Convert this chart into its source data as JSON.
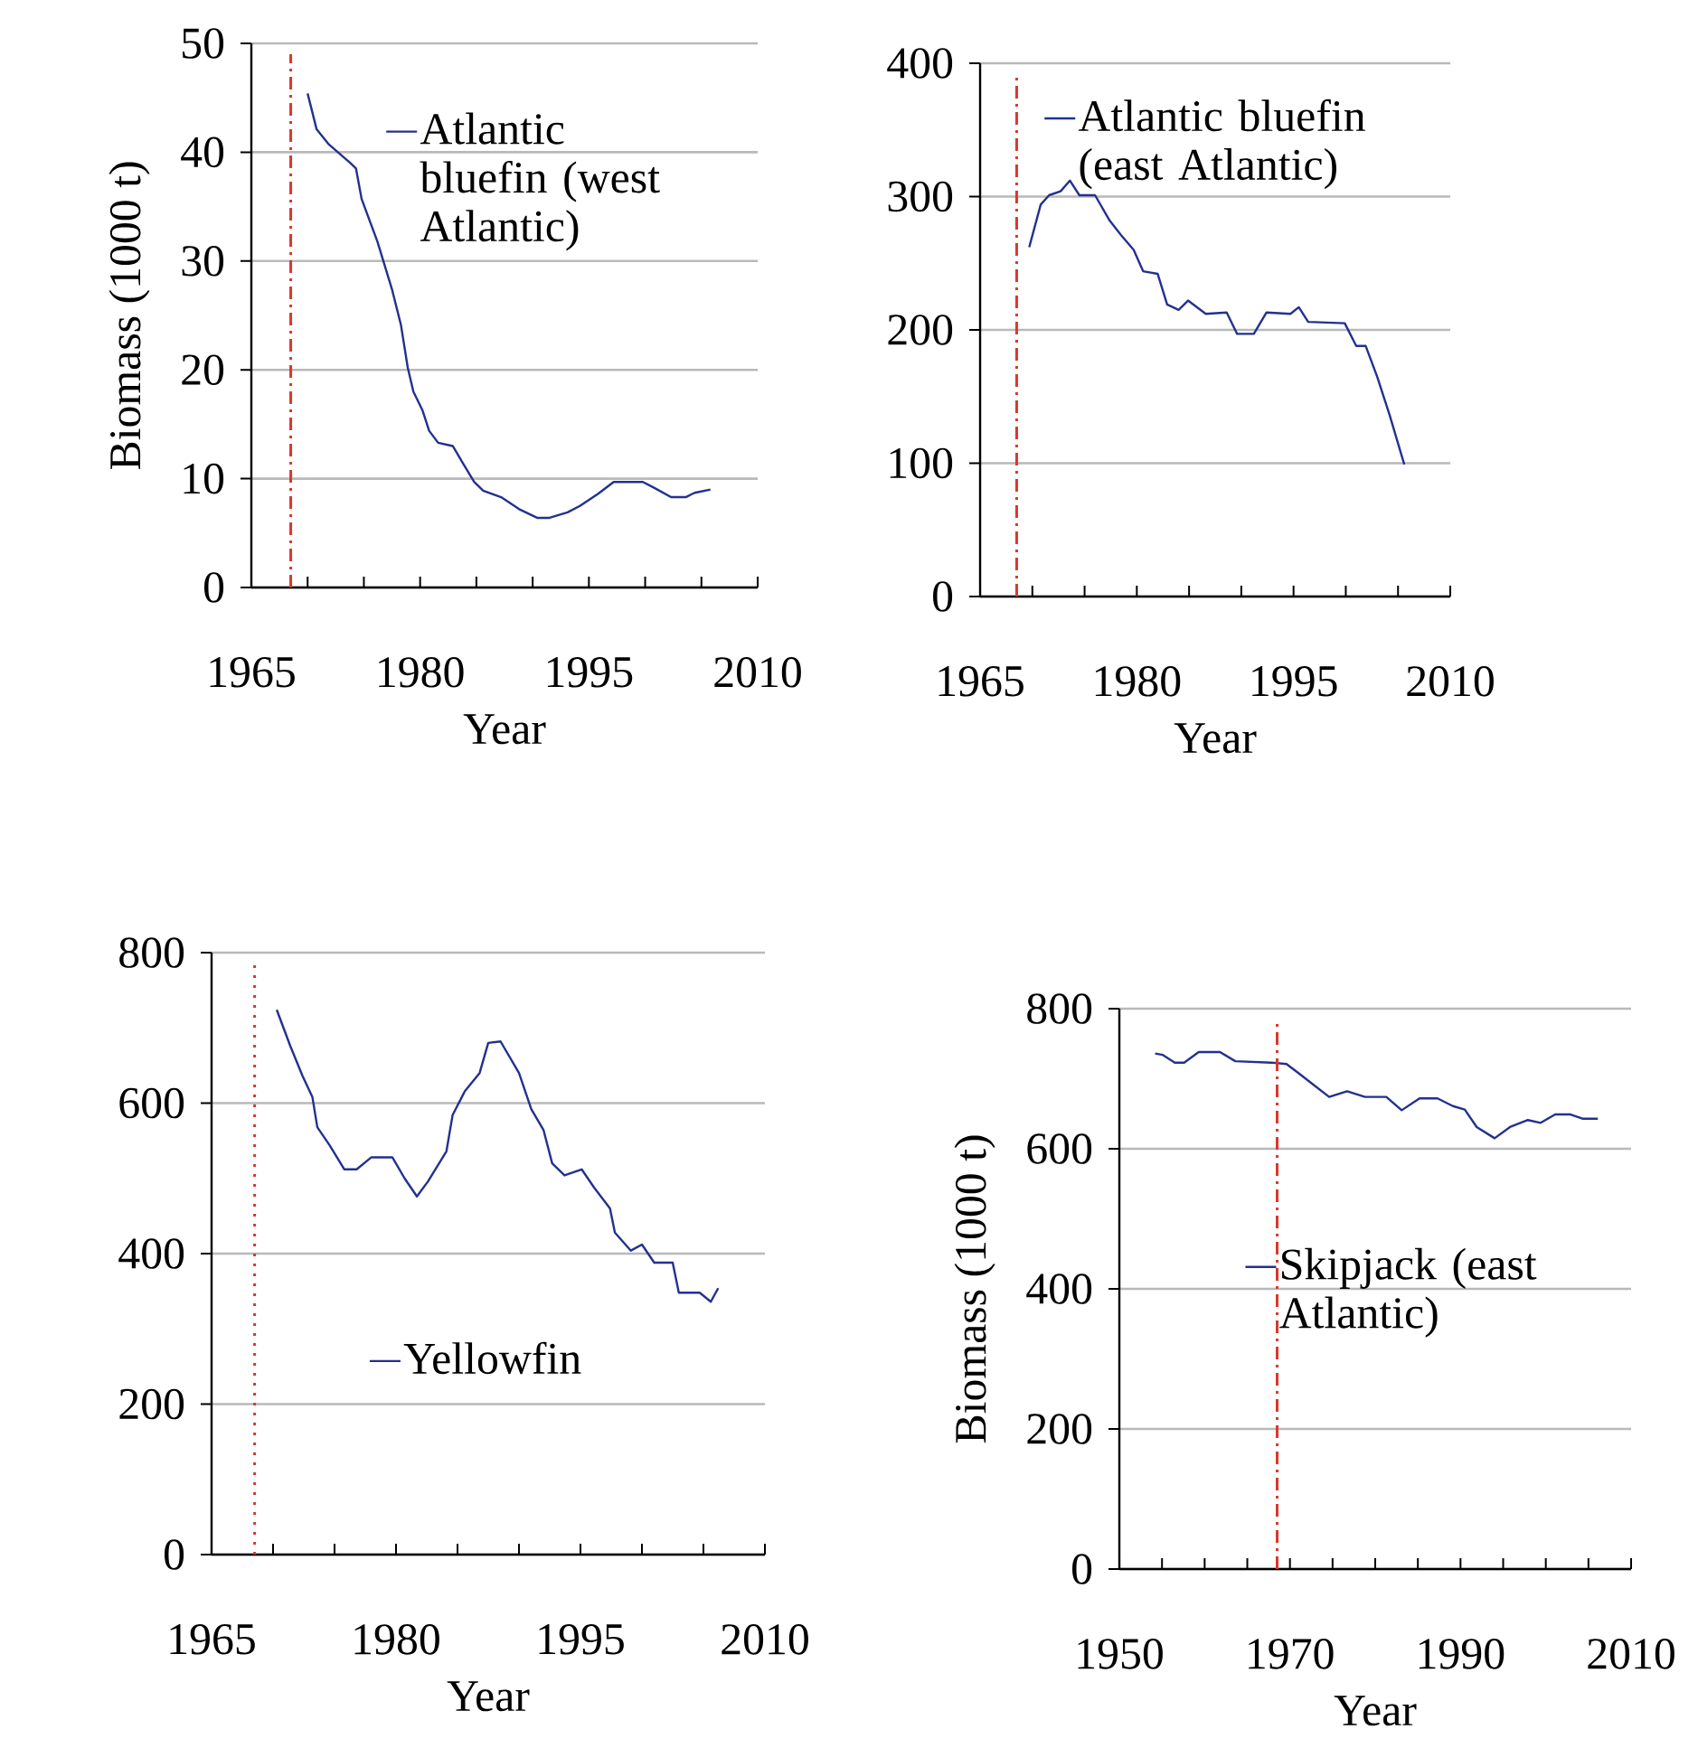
{
  "chart_data": [
    {
      "type": "line",
      "xlabel": "Year",
      "ylabel": "Biomass (1000 t)",
      "xlim": [
        1965,
        2010
      ],
      "ylim": [
        0,
        50
      ],
      "xticks": [
        1965,
        {
          "value": 1970,
          "label": null
        },
        {
          "value": 1975,
          "label": null
        },
        1980,
        {
          "value": 1985,
          "label": null
        },
        {
          "value": 1990,
          "label": null
        },
        1995,
        {
          "value": 2000,
          "label": null
        },
        {
          "value": 2005,
          "label": null
        },
        2010
      ],
      "yticks": [
        0,
        10,
        20,
        30,
        40,
        50
      ],
      "grid": "y",
      "legend": "top right",
      "ref_lines": [
        {
          "axis": "x",
          "value": 1968.5,
          "color": "#d9382c",
          "line_style": "dashed"
        }
      ],
      "x": [
        1970,
        1970.8,
        1971.9,
        1973.8,
        1974.3,
        1974.8,
        1976.2,
        1977.5,
        1978.3,
        1978.9,
        1979.4,
        1980.2,
        1980.8,
        1981.6,
        1982.9,
        1983.7,
        1984.8,
        1985.6,
        1987.2,
        1988.8,
        1990.4,
        1991.5,
        1993.1,
        1994.2,
        1995.8,
        1997.2,
        1999.8,
        2000.9,
        2002.3,
        2003.6,
        2004.4,
        2005.8
      ],
      "series": [
        {
          "name": "Atlantic bluefin (west Atlantic)",
          "color": "#22318f",
          "values": [
            45.4,
            42.1,
            40.7,
            39.0,
            38.5,
            35.7,
            31.8,
            27.4,
            24.1,
            20.2,
            18.0,
            16.3,
            14.4,
            13.3,
            13.0,
            11.6,
            9.7,
            8.9,
            8.3,
            7.2,
            6.4,
            6.4,
            6.9,
            7.5,
            8.6,
            9.7,
            9.7,
            9.1,
            8.3,
            8.3,
            8.7,
            9.0
          ]
        }
      ]
    },
    {
      "type": "line",
      "xlabel": "Year",
      "xlim": [
        1965,
        2010
      ],
      "ylim": [
        0,
        400
      ],
      "xticks": [
        1965,
        {
          "value": 1970,
          "label": null
        },
        {
          "value": 1975,
          "label": null
        },
        1980,
        {
          "value": 1985,
          "label": null
        },
        {
          "value": 1990,
          "label": null
        },
        1995,
        {
          "value": 2000,
          "label": null
        },
        {
          "value": 2005,
          "label": null
        },
        2010
      ],
      "yticks": [
        0,
        100,
        200,
        300,
        400
      ],
      "grid": "y",
      "legend": "top",
      "ref_lines": [
        {
          "axis": "x",
          "value": 1968.5,
          "color": "#d9382c",
          "line_style": "dashed"
        }
      ],
      "x": [
        1969.7,
        1970.8,
        1971.6,
        1972.7,
        1973.6,
        1974.5,
        1976.0,
        1977.4,
        1978.5,
        1979.7,
        1980.6,
        1982.0,
        1982.9,
        1984.0,
        1984.9,
        1986.6,
        1988.6,
        1989.6,
        1991.2,
        1992.4,
        1994.7,
        1995.5,
        1996.4,
        1999.9,
        2001.0,
        2001.9,
        2003.0,
        2004.2,
        2005.6
      ],
      "series": [
        {
          "name": "Atlantic bluefin (east Atlantic)",
          "color": "#22318f",
          "values": [
            262,
            294,
            301,
            304,
            312,
            301,
            301,
            282,
            271,
            260,
            244,
            242,
            219,
            215,
            222,
            212,
            213,
            197,
            197,
            213,
            212,
            217,
            206,
            205,
            188,
            188,
            165,
            136,
            99
          ]
        }
      ]
    },
    {
      "type": "line",
      "xlabel": "Year",
      "xlim": [
        1965,
        2010
      ],
      "ylim": [
        0,
        800
      ],
      "xticks": [
        1965,
        {
          "value": 1970,
          "label": null
        },
        {
          "value": 1975,
          "label": null
        },
        1980,
        {
          "value": 1985,
          "label": null
        },
        {
          "value": 1990,
          "label": null
        },
        1995,
        {
          "value": 2000,
          "label": null
        },
        {
          "value": 2005,
          "label": null
        },
        2010
      ],
      "yticks": [
        0,
        200,
        400,
        600,
        800
      ],
      "grid": "y",
      "legend": "bottom right",
      "ref_lines": [
        {
          "axis": "x",
          "value": 1968.5,
          "color": "#d9382c",
          "line_style": "dotted"
        }
      ],
      "x": [
        1970.3,
        1971.4,
        1972.4,
        1973.2,
        1973.6,
        1974.6,
        1975.8,
        1976.8,
        1978.0,
        1979.7,
        1980.7,
        1981.7,
        1982.6,
        1984.1,
        1984.6,
        1985.6,
        1986.8,
        1987.5,
        1988.5,
        1990.0,
        1991.0,
        1992.0,
        1992.7,
        1993.7,
        1995.1,
        1996.1,
        1997.4,
        1997.8,
        1999.1,
        2000.0,
        2001.0,
        2002.5,
        2003.0,
        2004.7,
        2005.6,
        2006.2
      ],
      "series": [
        {
          "name": "Yellowfin",
          "color": "#22318f",
          "values": [
            724,
            676,
            636,
            608,
            568,
            544,
            512,
            512,
            528,
            528,
            500,
            476,
            496,
            536,
            584,
            616,
            640,
            680,
            682,
            640,
            592,
            564,
            520,
            504,
            512,
            488,
            460,
            428,
            404,
            412,
            388,
            388,
            348,
            348,
            336,
            354
          ]
        }
      ]
    },
    {
      "type": "line",
      "xlabel": "Year",
      "ylabel": "Biomass (1000 t)",
      "xlim": [
        1950,
        2010
      ],
      "ylim": [
        0,
        800
      ],
      "xticks": [
        1950,
        {
          "value": 1955,
          "label": null
        },
        {
          "value": 1960,
          "label": null
        },
        {
          "value": 1965,
          "label": null
        },
        1970,
        {
          "value": 1975,
          "label": null
        },
        {
          "value": 1980,
          "label": null
        },
        {
          "value": 1985,
          "label": null
        },
        1990,
        {
          "value": 1995,
          "label": null
        },
        {
          "value": 2000,
          "label": null
        },
        {
          "value": 2005,
          "label": null
        },
        2010
      ],
      "yticks": [
        0,
        200,
        400,
        600,
        800
      ],
      "grid": "y",
      "legend": "right",
      "ref_lines": [
        {
          "axis": "x",
          "value": 1968.5,
          "color": "#d9382c",
          "line_style": "dashed"
        }
      ],
      "x": [
        1954.2,
        1955.1,
        1956.5,
        1957.6,
        1959.3,
        1961.8,
        1963.6,
        1967.8,
        1969.6,
        1971.0,
        1972.8,
        1974.6,
        1976.7,
        1978.8,
        1981.3,
        1983.1,
        1985.2,
        1987.3,
        1989.1,
        1990.5,
        1991.9,
        1994.0,
        1995.8,
        1997.9,
        1999.4,
        2001.1,
        2002.9,
        2004.3,
        2006.1
      ],
      "series": [
        {
          "name": "Skipjack (east Atlantic)",
          "color": "#22318f",
          "values": [
            736,
            734,
            723,
            723,
            738,
            738,
            725,
            723,
            721,
            708,
            691,
            674,
            682,
            674,
            674,
            655,
            672,
            672,
            661,
            656,
            631,
            615,
            631,
            641,
            637,
            649,
            649,
            643,
            643
          ]
        }
      ]
    }
  ]
}
